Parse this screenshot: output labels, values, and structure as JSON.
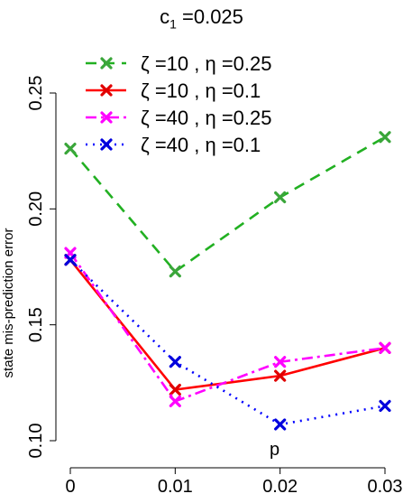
{
  "chart_data": {
    "type": "line",
    "title_main": "c",
    "title_sub": "1",
    "title_rest": " =0.025",
    "ylabel": "state mis-prediction error",
    "xlabel": "p",
    "x": [
      0,
      0.01,
      0.02,
      0.03
    ],
    "x_tick_labels": [
      "0",
      "0.01",
      "0.02",
      "0.03"
    ],
    "y_ticks": [
      0.1,
      0.15,
      0.2,
      0.25
    ],
    "y_tick_labels": [
      "0.10",
      "0.15",
      "0.20",
      "0.25"
    ],
    "xlim": [
      0,
      0.03
    ],
    "ylim": [
      0.1,
      0.25
    ],
    "grid": false,
    "legend_position": "top-left",
    "series": [
      {
        "name": "ζ =10 , η =0.25",
        "color": "#22b022",
        "marker_color": "#3aa63a",
        "dash": "12,8",
        "values": [
          0.226,
          0.173,
          0.205,
          0.231
        ]
      },
      {
        "name": "ζ =10 , η =0.1",
        "color": "#ff0000",
        "marker_color": "#e00000",
        "dash": "",
        "values": [
          0.178,
          0.122,
          0.128,
          0.14
        ]
      },
      {
        "name": "ζ =40 , η =0.25",
        "color": "#ff00ff",
        "marker_color": "#ff00ff",
        "dash": "12,5,3,5",
        "values": [
          0.181,
          0.117,
          0.134,
          0.14
        ]
      },
      {
        "name": "ζ =40 , η =0.1",
        "color": "#0000ff",
        "marker_color": "#0000dd",
        "dash": "2,6",
        "values": [
          0.178,
          0.134,
          0.107,
          0.115
        ]
      }
    ]
  }
}
